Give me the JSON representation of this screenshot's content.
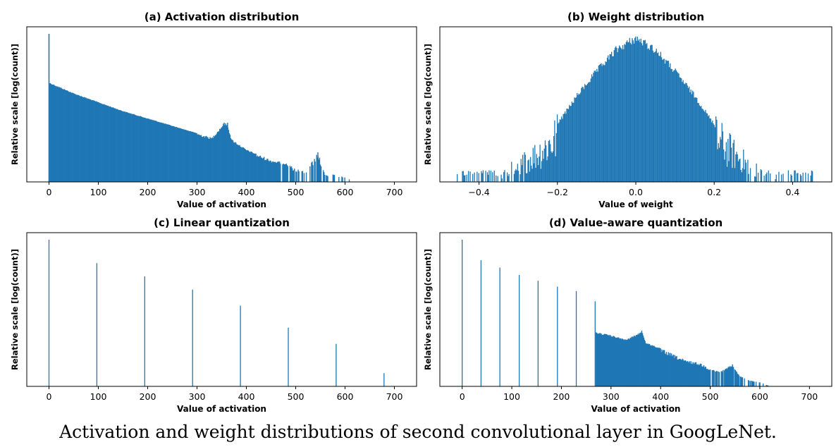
{
  "caption": "Activation and weight distributions of second convolutional layer in GoogLeNet.",
  "colors": {
    "bar": "#1f77b4",
    "axis": "#000000",
    "background": "#ffffff"
  },
  "chart_data": [
    {
      "id": "a",
      "type": "bar",
      "title": "(a) Activation distribution",
      "xlabel": "Value of activation",
      "ylabel": "Relative scale [log(count)]",
      "xlim": [
        -45,
        745
      ],
      "ylim": [
        0,
        1
      ],
      "xticks": [
        0,
        100,
        200,
        300,
        400,
        500,
        600,
        700
      ],
      "xtick_labels": [
        "0",
        "100",
        "200",
        "300",
        "400",
        "500",
        "600",
        "700"
      ],
      "yticks": [],
      "description": "dense histogram: spike at 0 (1.0), then ~0.67 decaying roughly linearly to ~0.3 at 400, sparse tail up to ~620",
      "x": [
        0,
        2,
        50,
        100,
        150,
        200,
        250,
        300,
        330,
        355,
        362,
        370,
        400,
        450,
        480,
        500,
        520,
        545,
        560,
        580,
        600,
        620
      ],
      "y": [
        1.0,
        0.67,
        0.6,
        0.54,
        0.48,
        0.43,
        0.38,
        0.33,
        0.3,
        0.4,
        0.39,
        0.29,
        0.22,
        0.15,
        0.13,
        0.09,
        0.07,
        0.2,
        0.05,
        0.05,
        0.03,
        0.0
      ]
    },
    {
      "id": "b",
      "type": "bar",
      "title": "(b) Weight distribution",
      "xlabel": "Value of weight",
      "ylabel": "Relative scale [log(count)]",
      "xlim": [
        -0.5,
        0.5
      ],
      "ylim": [
        0,
        1
      ],
      "xticks": [
        -0.4,
        -0.2,
        0.0,
        0.2,
        0.4
      ],
      "xtick_labels": [
        "−0.4",
        "−0.2",
        "0.0",
        "0.2",
        "0.4"
      ],
      "yticks": [],
      "description": "bell-shaped histogram centred at 0 (peak 1.0), falling to ~0.1 near ±0.3 with sparse outliers out to ±0.46",
      "x": [
        -0.46,
        -0.4,
        -0.35,
        -0.3,
        -0.25,
        -0.2,
        -0.15,
        -0.1,
        -0.05,
        0.0,
        0.05,
        0.1,
        0.15,
        0.2,
        0.25,
        0.3,
        0.35,
        0.4,
        0.46
      ],
      "y": [
        0.0,
        0.0,
        0.05,
        0.15,
        0.25,
        0.4,
        0.6,
        0.77,
        0.92,
        1.0,
        0.92,
        0.77,
        0.6,
        0.4,
        0.25,
        0.12,
        0.06,
        0.04,
        0.0
      ]
    },
    {
      "id": "c",
      "type": "bar",
      "title": "(c) Linear quantization",
      "xlabel": "Value of activation",
      "ylabel": "Relative scale [log(count)]",
      "xlim": [
        -45,
        745
      ],
      "ylim": [
        0,
        1
      ],
      "xticks": [
        0,
        100,
        200,
        300,
        400,
        500,
        600,
        700
      ],
      "xtick_labels": [
        "0",
        "100",
        "200",
        "300",
        "400",
        "500",
        "600",
        "700"
      ],
      "yticks": [],
      "x": [
        0,
        97,
        194,
        291,
        388,
        485,
        582,
        679
      ],
      "y": [
        1.0,
        0.84,
        0.75,
        0.66,
        0.55,
        0.4,
        0.29,
        0.09
      ]
    },
    {
      "id": "d",
      "type": "bar",
      "title": "(d) Value-aware quantization",
      "xlabel": "Value of activation",
      "ylabel": "Relative scale [log(count)]",
      "xlim": [
        -45,
        745
      ],
      "ylim": [
        0,
        1
      ],
      "xticks": [
        0,
        100,
        200,
        300,
        400,
        500,
        600,
        700
      ],
      "xtick_labels": [
        "0",
        "100",
        "200",
        "300",
        "400",
        "500",
        "600",
        "700"
      ],
      "yticks": [],
      "description": "quantized spikes below ~268, dense unquantized histogram from ~268 to ~620",
      "spikes": {
        "x": [
          0,
          38,
          76,
          115,
          153,
          192,
          230,
          268
        ],
        "y": [
          1.0,
          0.86,
          0.81,
          0.76,
          0.72,
          0.68,
          0.65,
          0.58
        ]
      },
      "x": [
        270,
        300,
        330,
        355,
        362,
        370,
        400,
        450,
        480,
        500,
        520,
        545,
        560,
        580,
        600,
        620
      ],
      "y": [
        0.37,
        0.35,
        0.32,
        0.36,
        0.38,
        0.3,
        0.26,
        0.18,
        0.16,
        0.12,
        0.1,
        0.15,
        0.07,
        0.04,
        0.03,
        0.0
      ]
    }
  ]
}
